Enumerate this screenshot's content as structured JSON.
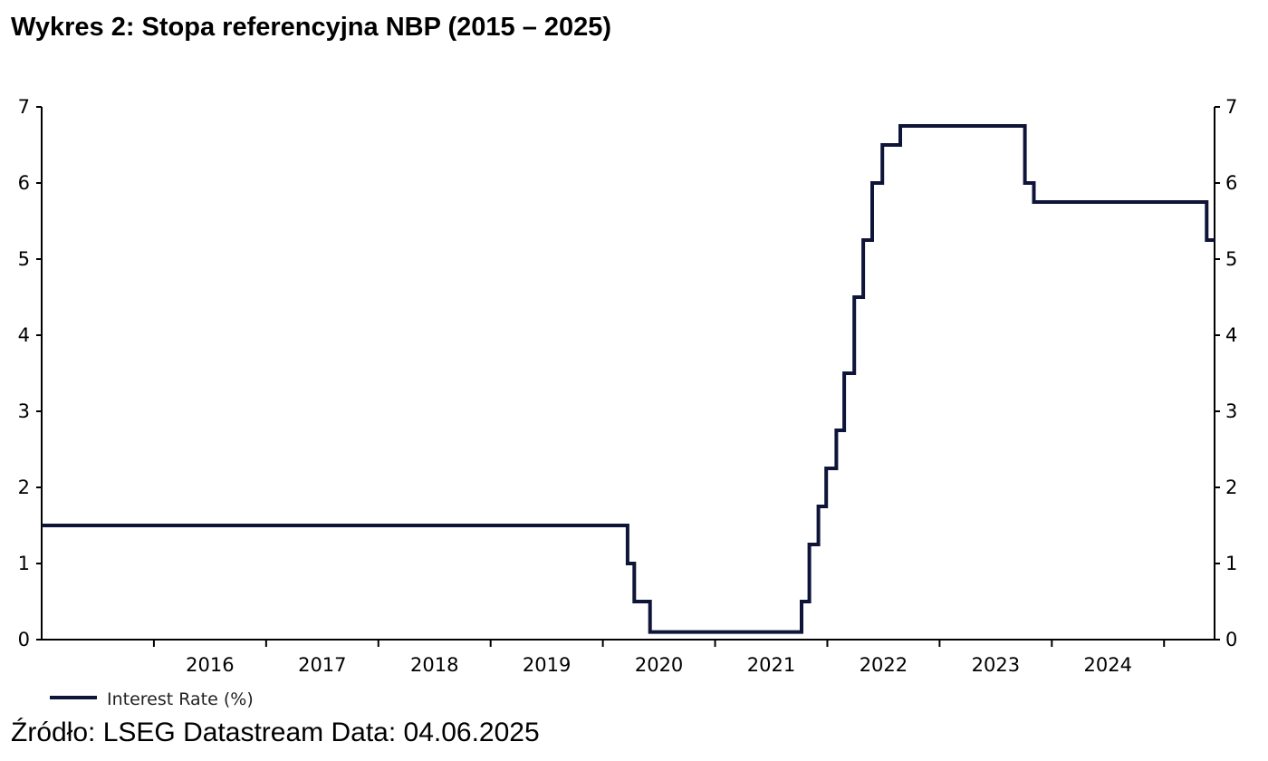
{
  "title": "Wykres 2: Stopa referencyjna NBP (2015 – 2025)",
  "source": "Źródło: LSEG Datastream Data: 04.06.2025",
  "colors": {
    "line": "#0f1538",
    "axis": "#000000"
  },
  "chart_data": {
    "type": "line",
    "title": "Wykres 2: Stopa referencyjna NBP (2015 – 2025)",
    "xlabel": "",
    "ylabel": "",
    "xlim": [
      2015.0,
      2025.45
    ],
    "ylim": [
      0,
      7
    ],
    "y_ticks": [
      "0",
      "1",
      "2",
      "3",
      "4",
      "5",
      "6",
      "7"
    ],
    "x_tick_labels": [
      "2016",
      "2017",
      "2018",
      "2019",
      "2020",
      "2021",
      "2022",
      "2023",
      "2024"
    ],
    "grid": false,
    "legend": "bottom-left",
    "series": [
      {
        "name": "Interest Rate (%)",
        "step": true,
        "points": [
          [
            2015.0,
            1.5
          ],
          [
            2020.22,
            1.0
          ],
          [
            2020.28,
            0.5
          ],
          [
            2020.42,
            0.1
          ],
          [
            2021.77,
            0.5
          ],
          [
            2021.84,
            1.25
          ],
          [
            2021.92,
            1.75
          ],
          [
            2021.99,
            2.25
          ],
          [
            2022.08,
            2.75
          ],
          [
            2022.15,
            3.5
          ],
          [
            2022.24,
            4.5
          ],
          [
            2022.32,
            5.25
          ],
          [
            2022.4,
            6.0
          ],
          [
            2022.49,
            6.5
          ],
          [
            2022.65,
            6.75
          ],
          [
            2023.76,
            6.0
          ],
          [
            2023.84,
            5.75
          ],
          [
            2025.38,
            5.25
          ],
          [
            2025.45,
            5.25
          ]
        ]
      }
    ]
  }
}
